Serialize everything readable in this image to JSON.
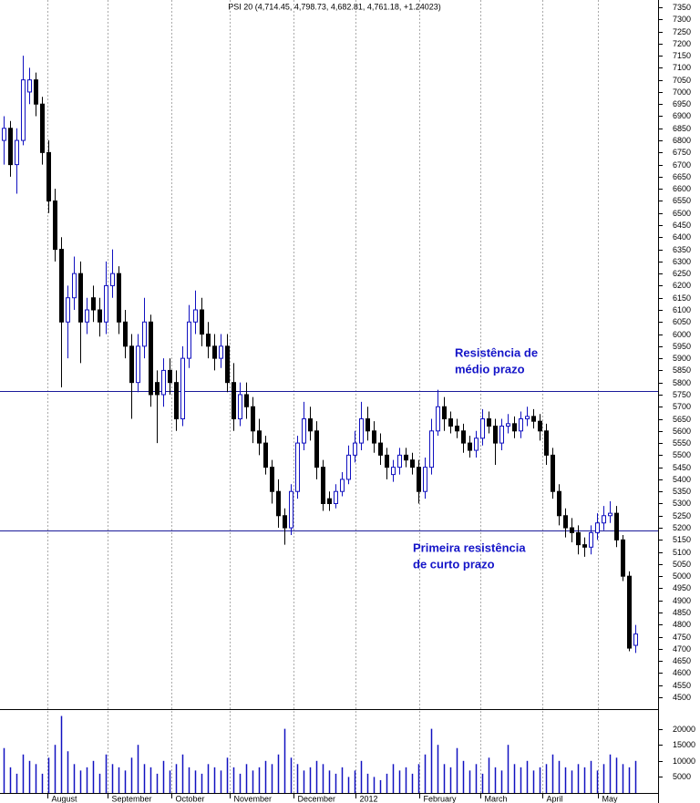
{
  "chart_data": [
    {
      "type": "candlestick",
      "title": "PSI 20 (4,714.45, 4,798.73, 4,682.81, 4,761.18, +1.24023)",
      "open": [
        6800,
        6850,
        6700,
        6800,
        7000,
        7050,
        6950,
        6750,
        6550,
        6350,
        6050,
        6150,
        6250,
        6050,
        6150,
        6100,
        6050,
        6200,
        6250,
        6050,
        5950,
        5800,
        5950,
        6050,
        5800,
        5750,
        5850,
        5800,
        5650,
        5900,
        6050,
        6100,
        6000,
        5950,
        5900,
        5950,
        5800,
        5650,
        5750,
        5700,
        5600,
        5550,
        5450,
        5350,
        5250,
        5200,
        5350,
        5550,
        5650,
        5600,
        5450,
        5320,
        5300,
        5350,
        5400,
        5500,
        5550,
        5650,
        5600,
        5550,
        5500,
        5420,
        5450,
        5500,
        5480,
        5450,
        5350,
        5450,
        5600,
        5700,
        5650,
        5620,
        5600,
        5550,
        5520,
        5570,
        5650,
        5620,
        5550,
        5620,
        5630,
        5600,
        5650,
        5660,
        5640,
        5600,
        5500,
        5350,
        5250,
        5200,
        5180,
        5130,
        5120,
        5180,
        5220,
        5250,
        5260,
        5150,
        5000,
        4714.45
      ],
      "high": [
        6900,
        6880,
        6850,
        7150,
        7100,
        7080,
        6980,
        6800,
        6600,
        6400,
        6200,
        6320,
        6300,
        6150,
        6200,
        6150,
        6300,
        6350,
        6280,
        6100,
        6000,
        6000,
        6150,
        6080,
        5850,
        5900,
        5900,
        5850,
        5950,
        6120,
        6180,
        6150,
        6050,
        6000,
        6000,
        6000,
        5880,
        5800,
        5800,
        5740,
        5650,
        5580,
        5480,
        5400,
        5280,
        5380,
        5580,
        5720,
        5700,
        5640,
        5480,
        5350,
        5380,
        5430,
        5540,
        5600,
        5720,
        5700,
        5640,
        5590,
        5530,
        5480,
        5530,
        5530,
        5510,
        5480,
        5490,
        5650,
        5770,
        5740,
        5680,
        5650,
        5630,
        5580,
        5600,
        5690,
        5680,
        5650,
        5650,
        5670,
        5660,
        5680,
        5700,
        5690,
        5670,
        5630,
        5530,
        5380,
        5280,
        5240,
        5210,
        5160,
        5210,
        5260,
        5290,
        5310,
        5290,
        5170,
        5020,
        4798.73
      ],
      "low": [
        6700,
        6650,
        6580,
        6780,
        6950,
        6900,
        6700,
        6500,
        6300,
        5780,
        5900,
        6100,
        5880,
        6000,
        6050,
        5990,
        6000,
        6150,
        6000,
        5900,
        5650,
        5760,
        5900,
        5700,
        5550,
        5700,
        5750,
        5600,
        5620,
        5860,
        6000,
        5950,
        5900,
        5850,
        5860,
        5760,
        5600,
        5620,
        5650,
        5550,
        5500,
        5420,
        5300,
        5200,
        5130,
        5170,
        5320,
        5520,
        5560,
        5400,
        5270,
        5270,
        5280,
        5330,
        5380,
        5470,
        5520,
        5560,
        5510,
        5460,
        5400,
        5390,
        5420,
        5450,
        5420,
        5300,
        5320,
        5420,
        5580,
        5600,
        5590,
        5570,
        5510,
        5490,
        5490,
        5540,
        5590,
        5460,
        5520,
        5590,
        5570,
        5570,
        5620,
        5610,
        5560,
        5460,
        5320,
        5210,
        5160,
        5140,
        5090,
        5080,
        5090,
        5150,
        5190,
        5220,
        5120,
        4980,
        4690,
        4682.81
      ],
      "close": [
        6850,
        6700,
        6800,
        7050,
        7050,
        6950,
        6750,
        6550,
        6350,
        6050,
        6150,
        6250,
        6050,
        6100,
        6100,
        6050,
        6200,
        6250,
        6050,
        5950,
        5800,
        5950,
        6050,
        5750,
        5750,
        5850,
        5800,
        5650,
        5900,
        6050,
        6100,
        6000,
        5950,
        5900,
        5950,
        5800,
        5650,
        5750,
        5700,
        5600,
        5550,
        5450,
        5350,
        5250,
        5200,
        5350,
        5550,
        5650,
        5600,
        5450,
        5300,
        5300,
        5350,
        5400,
        5500,
        5550,
        5650,
        5600,
        5550,
        5500,
        5450,
        5450,
        5500,
        5480,
        5450,
        5350,
        5450,
        5600,
        5700,
        5650,
        5620,
        5600,
        5550,
        5520,
        5570,
        5650,
        5620,
        5550,
        5620,
        5630,
        5600,
        5650,
        5660,
        5640,
        5600,
        5500,
        5350,
        5250,
        5200,
        5180,
        5130,
        5120,
        5180,
        5220,
        5250,
        5260,
        5150,
        5000,
        4703,
        4761.18
      ],
      "up_color": "#1010c0",
      "down_color": "#000000",
      "xlim": [
        -0.57,
        102.57
      ],
      "xticks": [
        {
          "value": 6.9,
          "label": "August"
        },
        {
          "value": 16.3,
          "label": "September"
        },
        {
          "value": 26.3,
          "label": "October"
        },
        {
          "value": 35.4,
          "label": "November"
        },
        {
          "value": 45.4,
          "label": "December"
        },
        {
          "value": 55.1,
          "label": "2012"
        },
        {
          "value": 65.1,
          "label": "February"
        },
        {
          "value": 74.7,
          "label": "March"
        },
        {
          "value": 84.4,
          "label": "April"
        },
        {
          "value": 93.1,
          "label": "May"
        }
      ],
      "ylim": [
        4451,
        7380
      ],
      "yticks": [
        4500,
        4550,
        4600,
        4650,
        4700,
        4750,
        4800,
        4850,
        4900,
        4950,
        5000,
        5050,
        5100,
        5150,
        5200,
        5250,
        5300,
        5350,
        5400,
        5450,
        5500,
        5550,
        5600,
        5650,
        5700,
        5750,
        5800,
        5850,
        5900,
        5950,
        6000,
        6050,
        6100,
        6150,
        6200,
        6250,
        6300,
        6350,
        6400,
        6450,
        6500,
        6550,
        6600,
        6650,
        6700,
        6750,
        6800,
        6850,
        6900,
        6950,
        7000,
        7050,
        7100,
        7150,
        7200,
        7250,
        7300,
        7350
      ],
      "hlines": [
        {
          "value": 5765,
          "color": "#1a1a9a",
          "label": [
            "Resistência de",
            "médio prazo"
          ]
        },
        {
          "value": 5190,
          "color": "#1a1a9a",
          "label": [
            "Primeira resistência",
            "de curto prazo"
          ]
        }
      ]
    },
    {
      "type": "bar",
      "values": [
        14000,
        8000,
        6000,
        12000,
        10000,
        9000,
        6000,
        11000,
        15000,
        24000,
        13000,
        9000,
        7000,
        8000,
        10000,
        6000,
        12000,
        9000,
        8000,
        7000,
        11000,
        15000,
        9000,
        8000,
        6000,
        10000,
        7000,
        9000,
        12000,
        8000,
        7000,
        6000,
        9000,
        8000,
        7000,
        11000,
        8000,
        6000,
        9000,
        7000,
        8000,
        10000,
        9000,
        12000,
        20000,
        11000,
        9000,
        7000,
        8000,
        10000,
        9000,
        7000,
        6000,
        8000,
        5000,
        7000,
        10000,
        6000,
        5000,
        4000,
        6000,
        9000,
        7000,
        8000,
        6000,
        9000,
        12000,
        20000,
        15000,
        9000,
        8000,
        14000,
        10000,
        7000,
        9000,
        6000,
        11000,
        8000,
        7000,
        15000,
        9000,
        8000,
        10000,
        7000,
        8000,
        9000,
        12000,
        10000,
        8000,
        7000,
        9000,
        8000,
        10000,
        7000,
        9000,
        12000,
        11000,
        9000,
        8000,
        10000
      ],
      "color": "#1010c0",
      "ylim": [
        0,
        25000
      ],
      "yticks": [
        5000,
        10000,
        15000,
        20000
      ]
    }
  ]
}
